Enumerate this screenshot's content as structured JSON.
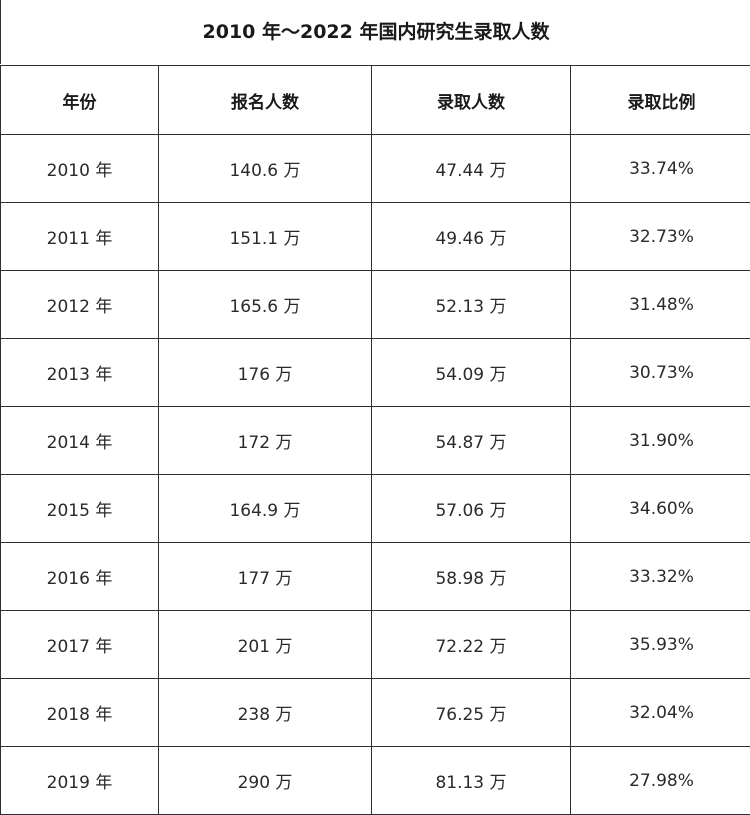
{
  "title": "2010 年～2022 年国内研究生录取人数",
  "headers": [
    "年份",
    "报名人数",
    "录取人数",
    "录取比例"
  ],
  "rows": [
    [
      "2010 年",
      "140.6 万",
      "47.44 万",
      "33.74%"
    ],
    [
      "2011 年",
      "151.1 万",
      "49.46 万",
      "32.73%"
    ],
    [
      "2012 年",
      "165.6 万",
      "52.13 万",
      "31.48%"
    ],
    [
      "2013 年",
      "176 万",
      "54.09 万",
      "30.73%"
    ],
    [
      "2014 年",
      "172 万",
      "54.87 万",
      "31.90%"
    ],
    [
      "2015 年",
      "164.9 万",
      "57.06 万",
      "34.60%"
    ],
    [
      "2016 年",
      "177 万",
      "58.98 万",
      "33.32%"
    ],
    [
      "2017 年",
      "201 万",
      "72.22 万",
      "35.93%"
    ],
    [
      "2018 年",
      "238 万",
      "76.25 万",
      "32.04%"
    ],
    [
      "2019 年",
      "290 万",
      "81.13 万",
      "27.98%"
    ]
  ]
}
